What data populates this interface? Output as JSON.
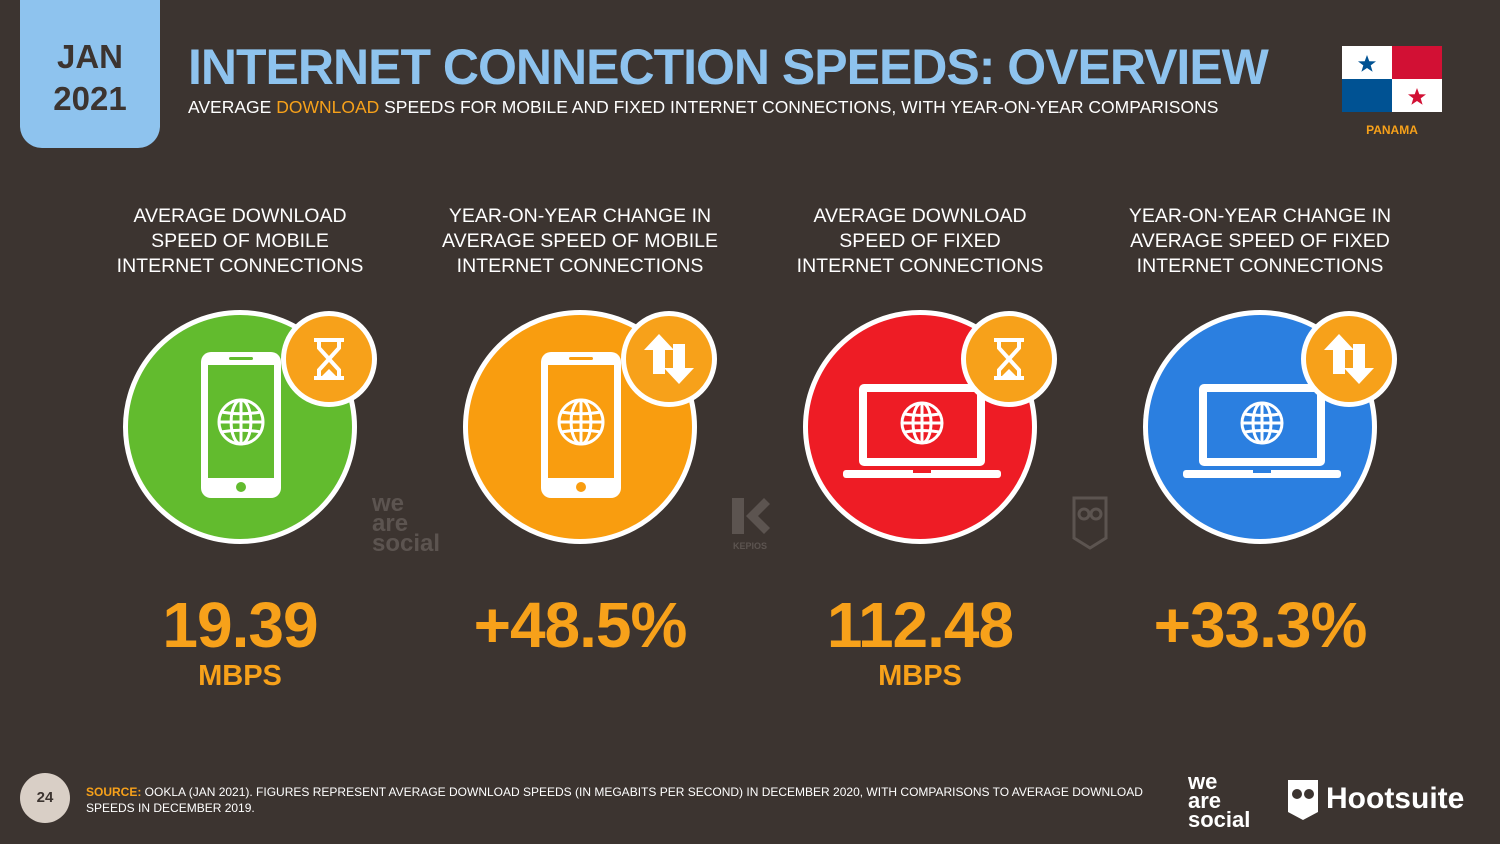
{
  "header": {
    "date_month": "JAN",
    "date_year": "2021",
    "title": "INTERNET CONNECTION SPEEDS: OVERVIEW",
    "subtitle_pre": "AVERAGE ",
    "subtitle_highlight": "DOWNLOAD",
    "subtitle_post": " SPEEDS FOR MOBILE AND FIXED INTERNET CONNECTIONS, WITH YEAR-ON-YEAR COMPARISONS",
    "country": "PANAMA"
  },
  "colors": {
    "background": "#3c3430",
    "accent_orange": "#f7a11a",
    "title_blue": "#8ec3ee",
    "green": "#62bb2e",
    "orange": "#f99d0f",
    "red": "#ee1c25",
    "blue": "#2b7fe0"
  },
  "metrics": [
    {
      "label_lines": [
        "AVERAGE DOWNLOAD",
        "SPEED OF MOBILE",
        "INTERNET CONNECTIONS"
      ],
      "value": "19.39",
      "unit": "MBPS",
      "device_icon": "smartphone-icon",
      "badge_icon": "hourglass-icon",
      "circle_color": "#62bb2e"
    },
    {
      "label_lines": [
        "YEAR-ON-YEAR CHANGE IN",
        "AVERAGE SPEED OF MOBILE",
        "INTERNET CONNECTIONS"
      ],
      "value": "+48.5%",
      "unit": "",
      "device_icon": "smartphone-icon",
      "badge_icon": "up-down-arrows-icon",
      "circle_color": "#f99d0f"
    },
    {
      "label_lines": [
        "AVERAGE DOWNLOAD",
        "SPEED OF FIXED",
        "INTERNET CONNECTIONS"
      ],
      "value": "112.48",
      "unit": "MBPS",
      "device_icon": "laptop-icon",
      "badge_icon": "hourglass-icon",
      "circle_color": "#ee1c25"
    },
    {
      "label_lines": [
        "YEAR-ON-YEAR CHANGE IN",
        "AVERAGE SPEED OF FIXED",
        "INTERNET CONNECTIONS"
      ],
      "value": "+33.3%",
      "unit": "",
      "device_icon": "laptop-icon",
      "badge_icon": "up-down-arrows-icon",
      "circle_color": "#2b7fe0"
    }
  ],
  "watermarks": {
    "we_are_social": [
      "we",
      "are",
      "social"
    ],
    "kepios": "KEPIOS"
  },
  "footer": {
    "page_number": "24",
    "source_label": "SOURCE:",
    "source_text": " OOKLA (JAN 2021). FIGURES REPRESENT AVERAGE DOWNLOAD SPEEDS (IN MEGABITS PER SECOND) IN DECEMBER 2020, WITH COMPARISONS TO AVERAGE DOWNLOAD SPEEDS IN DECEMBER 2019.",
    "brand_was": [
      "we",
      "are",
      "social"
    ],
    "brand_hootsuite": "Hootsuite"
  }
}
